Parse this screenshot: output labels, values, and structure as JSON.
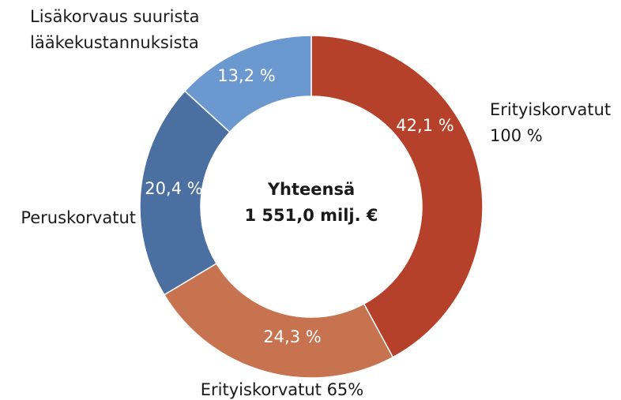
{
  "chart_data": {
    "type": "donut",
    "categories": [
      [
        "Erityiskorvatut",
        "100 %"
      ],
      [
        "Erityiskorvatut 65%"
      ],
      [
        "Peruskorvatut"
      ],
      [
        "Lisäkorvaus suurista",
        "lääkekustannuksista"
      ]
    ],
    "values": [
      42.1,
      24.3,
      20.4,
      13.2
    ],
    "value_labels": [
      "42,1 %",
      "24,3 %",
      "20,4 %",
      "13,2 %"
    ],
    "colors": [
      "#b5412b",
      "#c8734f",
      "#4a6fa0",
      "#6b98cf"
    ],
    "center_label": [
      "Yhteensä",
      "1 551,0 milj. €"
    ]
  }
}
